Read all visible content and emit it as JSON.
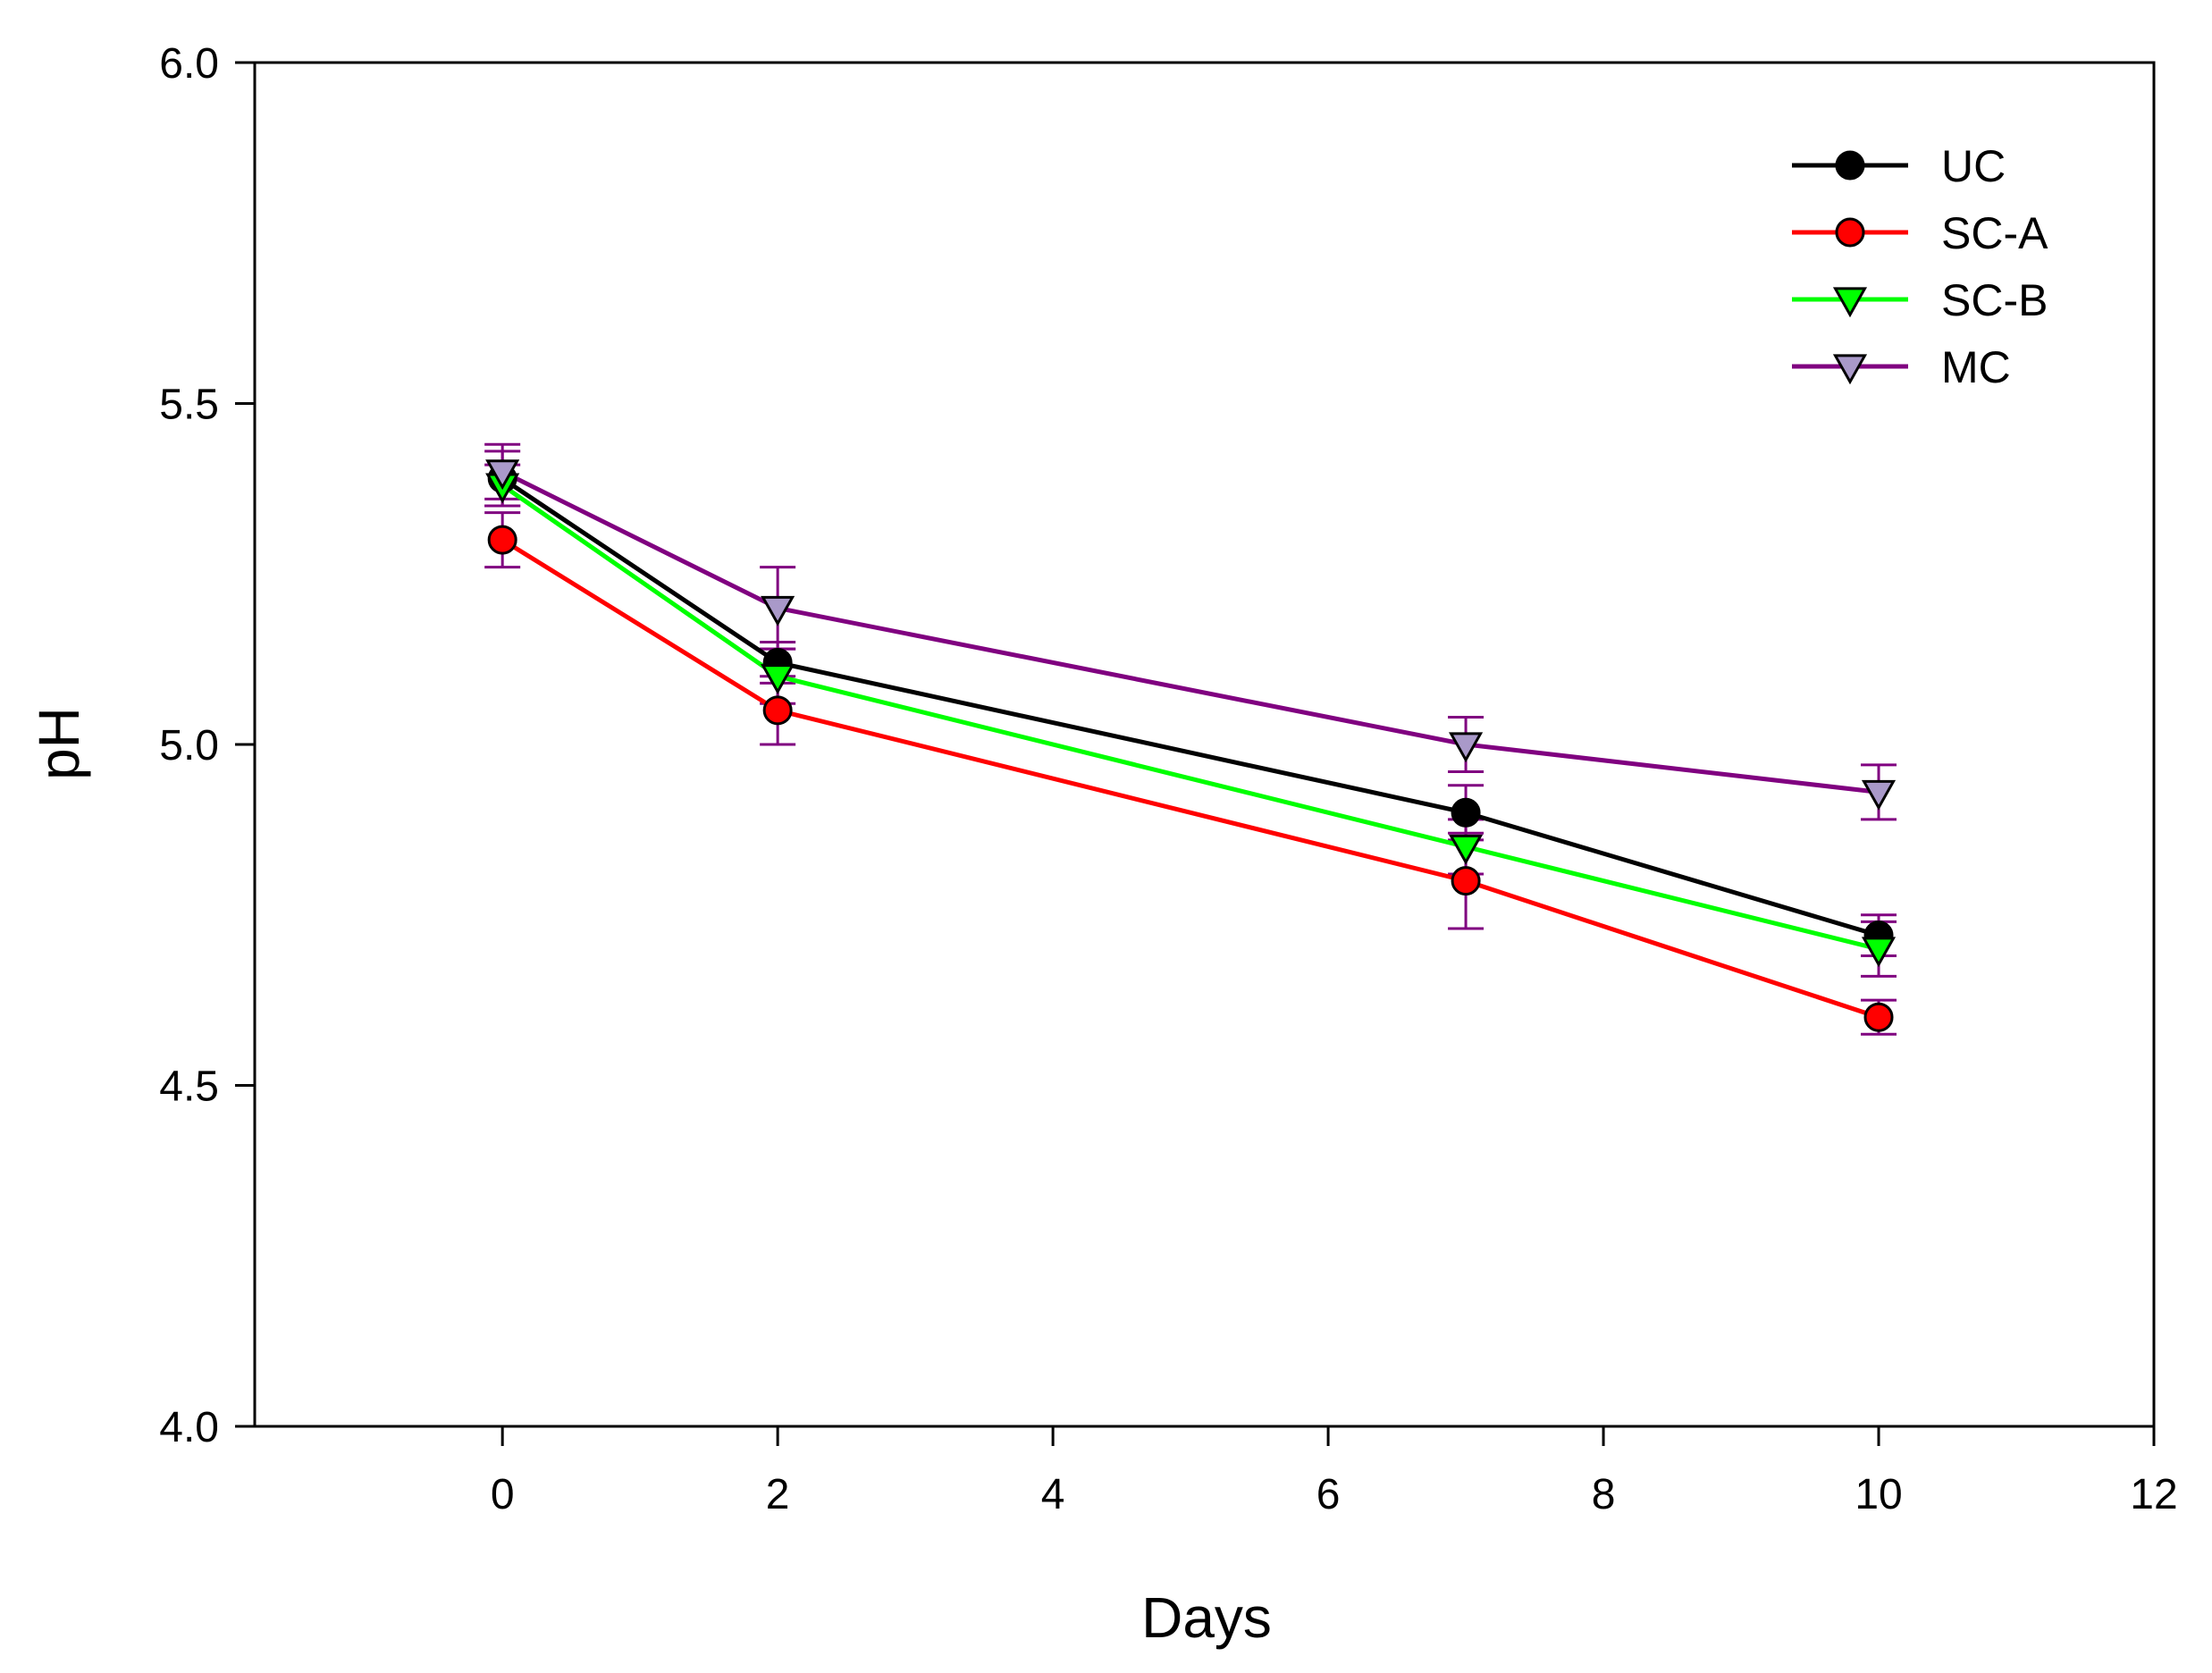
{
  "chart_data": {
    "type": "line",
    "title": "",
    "xlabel": "Days",
    "ylabel": "pH",
    "xlim": [
      -1.8,
      12
    ],
    "ylim": [
      4.0,
      6.0
    ],
    "x_ticks": [
      0,
      2,
      4,
      6,
      8,
      10,
      12
    ],
    "x_tick_labels": [
      "0",
      "2",
      "4",
      "6",
      "8",
      "10",
      "12"
    ],
    "y_ticks": [
      4.0,
      4.5,
      5.0,
      5.5,
      6.0
    ],
    "y_tick_labels": [
      "4.0",
      "4.5",
      "5.0",
      "5.5",
      "6.0"
    ],
    "x": [
      0,
      2,
      7,
      10
    ],
    "legend_position": "top-right",
    "grid": false,
    "series": [
      {
        "name": "UC",
        "color": "#000000",
        "marker": "circle",
        "marker_fill": "#000000",
        "values": [
          5.39,
          5.12,
          4.9,
          4.72
        ],
        "errors": [
          0.04,
          0.03,
          0.04,
          0.03
        ]
      },
      {
        "name": "SC-A",
        "color": "#ff0000",
        "marker": "circle",
        "marker_fill": "#ff0000",
        "values": [
          5.3,
          5.05,
          4.8,
          4.6
        ],
        "errors": [
          0.04,
          0.05,
          0.07,
          0.025
        ]
      },
      {
        "name": "SC-B",
        "color": "#00ff00",
        "marker": "triangle-down",
        "marker_fill": "#00ff00",
        "values": [
          5.38,
          5.1,
          4.85,
          4.7
        ],
        "errors": [
          0.03,
          0.04,
          0.04,
          0.04
        ]
      },
      {
        "name": "MC",
        "color": "#800080",
        "marker": "triangle-down",
        "marker_fill": "#a999c9",
        "values": [
          5.4,
          5.2,
          5.0,
          4.93
        ],
        "errors": [
          0.04,
          0.06,
          0.04,
          0.04
        ]
      }
    ]
  }
}
